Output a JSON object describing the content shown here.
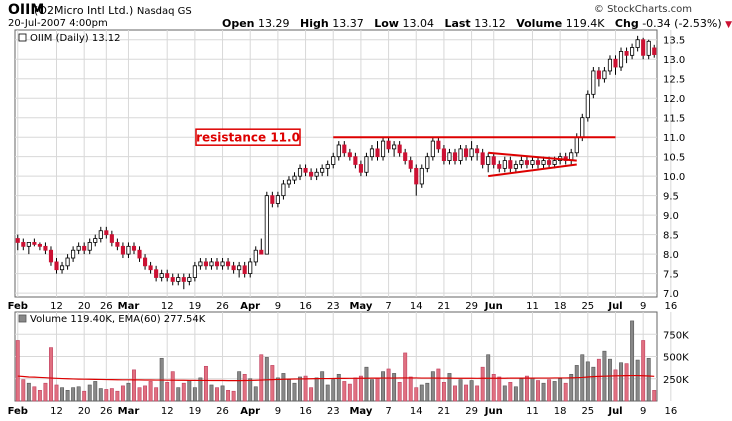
{
  "header": {
    "symbol": "OIIM",
    "company": "(O2Micro Intl Ltd.)",
    "exchange": "Nasdaq GS",
    "datetime": "20-Jul-2007 4:00pm",
    "watermark": "© StockCharts.com",
    "quote": {
      "open_label": "Open",
      "open": "13.29",
      "high_label": "High",
      "high": "13.37",
      "low_label": "Low",
      "low": "13.04",
      "last_label": "Last",
      "last": "13.12",
      "volume_label": "Volume",
      "volume": "119.4K",
      "chg_label": "Chg",
      "chg": "-0.34 (-2.53%)"
    }
  },
  "colors": {
    "up": "#ffffff",
    "down": "#cc1133",
    "vol_up": "#888888",
    "vol_down": "#e07080",
    "ema": "#dd0000",
    "grid": "#d8d8d8",
    "annotation": "#dd0000"
  },
  "chart_data": [
    {
      "type": "candlestick",
      "legend": "OIIM (Daily) 13.12",
      "ylim": [
        6.9,
        13.75
      ],
      "y_ticks": [
        "7.0",
        "7.5",
        "8.0",
        "8.5",
        "9.0",
        "9.5",
        "10.0",
        "10.5",
        "11.0",
        "11.5",
        "12.0",
        "12.5",
        "13.0",
        "13.5"
      ],
      "x_ticks": [
        "Feb",
        "12",
        "20",
        "26",
        "Mar",
        "12",
        "19",
        "26",
        "Apr",
        "9",
        "16",
        "23",
        "May",
        "7",
        "14",
        "21",
        "29",
        "Jun",
        "11",
        "18",
        "25",
        "Jul",
        "9",
        "16"
      ],
      "x_tick_index": [
        0,
        7,
        12,
        16,
        20,
        27,
        32,
        37,
        42,
        47,
        52,
        57,
        62,
        67,
        72,
        77,
        82,
        86,
        93,
        98,
        103,
        108,
        113,
        118
      ],
      "annotation": {
        "label": "resistance 11.0",
        "value": 11.0
      },
      "triangle": {
        "upper": [
          [
            0,
            10.6
          ],
          [
            16,
            10.4
          ]
        ],
        "lower": [
          [
            0,
            10.0
          ],
          [
            16,
            10.3
          ]
        ]
      },
      "candles": [
        [
          8.4,
          8.5,
          8.1,
          8.3
        ],
        [
          8.3,
          8.4,
          8.1,
          8.2
        ],
        [
          8.2,
          8.3,
          8.0,
          8.3
        ],
        [
          8.3,
          8.4,
          8.2,
          8.25
        ],
        [
          8.25,
          8.3,
          8.1,
          8.2
        ],
        [
          8.2,
          8.3,
          8.0,
          8.1
        ],
        [
          8.1,
          8.2,
          7.7,
          7.8
        ],
        [
          7.8,
          7.9,
          7.5,
          7.6
        ],
        [
          7.6,
          7.8,
          7.5,
          7.7
        ],
        [
          7.7,
          8.0,
          7.6,
          7.9
        ],
        [
          7.9,
          8.2,
          7.8,
          8.1
        ],
        [
          8.1,
          8.3,
          8.0,
          8.2
        ],
        [
          8.2,
          8.3,
          8.0,
          8.1
        ],
        [
          8.1,
          8.4,
          8.0,
          8.3
        ],
        [
          8.3,
          8.5,
          8.2,
          8.4
        ],
        [
          8.4,
          8.7,
          8.3,
          8.6
        ],
        [
          8.6,
          8.7,
          8.4,
          8.5
        ],
        [
          8.5,
          8.6,
          8.2,
          8.3
        ],
        [
          8.3,
          8.4,
          8.1,
          8.2
        ],
        [
          8.2,
          8.3,
          7.9,
          8.0
        ],
        [
          8.0,
          8.3,
          7.9,
          8.2
        ],
        [
          8.2,
          8.3,
          8.0,
          8.1
        ],
        [
          8.1,
          8.2,
          7.8,
          7.9
        ],
        [
          7.9,
          8.0,
          7.6,
          7.7
        ],
        [
          7.7,
          7.8,
          7.5,
          7.6
        ],
        [
          7.6,
          7.7,
          7.3,
          7.4
        ],
        [
          7.4,
          7.6,
          7.3,
          7.5
        ],
        [
          7.5,
          7.6,
          7.3,
          7.4
        ],
        [
          7.4,
          7.5,
          7.2,
          7.3
        ],
        [
          7.3,
          7.5,
          7.2,
          7.4
        ],
        [
          7.4,
          7.5,
          7.1,
          7.3
        ],
        [
          7.3,
          7.5,
          7.2,
          7.4
        ],
        [
          7.4,
          7.8,
          7.3,
          7.7
        ],
        [
          7.7,
          7.9,
          7.6,
          7.8
        ],
        [
          7.8,
          7.9,
          7.6,
          7.7
        ],
        [
          7.7,
          7.9,
          7.6,
          7.8
        ],
        [
          7.8,
          7.9,
          7.6,
          7.7
        ],
        [
          7.7,
          7.9,
          7.6,
          7.8
        ],
        [
          7.8,
          7.9,
          7.6,
          7.7
        ],
        [
          7.7,
          7.8,
          7.5,
          7.6
        ],
        [
          7.6,
          7.8,
          7.4,
          7.7
        ],
        [
          7.7,
          7.8,
          7.4,
          7.5
        ],
        [
          7.5,
          7.9,
          7.4,
          7.8
        ],
        [
          7.8,
          8.2,
          7.7,
          8.1
        ],
        [
          8.1,
          8.4,
          8.0,
          8.0
        ],
        [
          8.0,
          9.6,
          8.0,
          9.5
        ],
        [
          9.5,
          9.6,
          9.2,
          9.3
        ],
        [
          9.3,
          9.6,
          9.2,
          9.5
        ],
        [
          9.5,
          9.9,
          9.4,
          9.8
        ],
        [
          9.8,
          10.0,
          9.7,
          9.9
        ],
        [
          9.9,
          10.1,
          9.8,
          10.0
        ],
        [
          10.0,
          10.3,
          9.9,
          10.2
        ],
        [
          10.2,
          10.3,
          10.0,
          10.1
        ],
        [
          10.1,
          10.2,
          9.9,
          10.0
        ],
        [
          10.0,
          10.2,
          9.9,
          10.1
        ],
        [
          10.1,
          10.3,
          10.0,
          10.2
        ],
        [
          10.2,
          10.4,
          10.0,
          10.3
        ],
        [
          10.3,
          10.6,
          10.2,
          10.5
        ],
        [
          10.5,
          10.9,
          10.4,
          10.8
        ],
        [
          10.8,
          10.9,
          10.5,
          10.6
        ],
        [
          10.6,
          10.7,
          10.4,
          10.5
        ],
        [
          10.5,
          10.6,
          10.2,
          10.3
        ],
        [
          10.3,
          10.4,
          10.0,
          10.1
        ],
        [
          10.1,
          10.6,
          10.0,
          10.5
        ],
        [
          10.5,
          10.8,
          10.4,
          10.7
        ],
        [
          10.7,
          10.9,
          10.4,
          10.5
        ],
        [
          10.5,
          11.0,
          10.4,
          10.9
        ],
        [
          10.9,
          11.0,
          10.6,
          10.7
        ],
        [
          10.7,
          10.9,
          10.5,
          10.8
        ],
        [
          10.8,
          10.9,
          10.5,
          10.6
        ],
        [
          10.6,
          10.7,
          10.3,
          10.4
        ],
        [
          10.4,
          10.5,
          10.1,
          10.2
        ],
        [
          10.2,
          10.3,
          9.5,
          9.8
        ],
        [
          9.8,
          10.3,
          9.7,
          10.2
        ],
        [
          10.2,
          10.6,
          10.1,
          10.5
        ],
        [
          10.5,
          11.0,
          10.4,
          10.9
        ],
        [
          10.9,
          11.0,
          10.6,
          10.7
        ],
        [
          10.7,
          10.8,
          10.3,
          10.4
        ],
        [
          10.4,
          10.7,
          10.3,
          10.6
        ],
        [
          10.6,
          10.7,
          10.3,
          10.4
        ],
        [
          10.4,
          10.8,
          10.3,
          10.7
        ],
        [
          10.7,
          10.8,
          10.4,
          10.5
        ],
        [
          10.5,
          10.9,
          10.4,
          10.7
        ],
        [
          10.7,
          10.8,
          10.4,
          10.6
        ],
        [
          10.6,
          10.7,
          10.2,
          10.3
        ],
        [
          10.3,
          10.6,
          10.1,
          10.5
        ],
        [
          10.5,
          10.6,
          10.2,
          10.3
        ],
        [
          10.3,
          10.4,
          10.1,
          10.2
        ],
        [
          10.2,
          10.5,
          10.1,
          10.4
        ],
        [
          10.4,
          10.5,
          10.1,
          10.2
        ],
        [
          10.2,
          10.4,
          10.1,
          10.3
        ],
        [
          10.3,
          10.5,
          10.2,
          10.4
        ],
        [
          10.4,
          10.5,
          10.2,
          10.3
        ],
        [
          10.3,
          10.5,
          10.2,
          10.4
        ],
        [
          10.4,
          10.5,
          10.2,
          10.3
        ],
        [
          10.3,
          10.5,
          10.2,
          10.4
        ],
        [
          10.4,
          10.5,
          10.2,
          10.3
        ],
        [
          10.3,
          10.5,
          10.2,
          10.4
        ],
        [
          10.4,
          10.6,
          10.3,
          10.5
        ],
        [
          10.5,
          10.6,
          10.3,
          10.4
        ],
        [
          10.4,
          10.7,
          10.3,
          10.6
        ],
        [
          10.6,
          11.1,
          10.5,
          11.0
        ],
        [
          11.0,
          11.6,
          10.9,
          11.5
        ],
        [
          11.5,
          12.2,
          11.4,
          12.1
        ],
        [
          12.1,
          12.8,
          12.0,
          12.7
        ],
        [
          12.7,
          12.8,
          12.3,
          12.5
        ],
        [
          12.5,
          12.8,
          12.4,
          12.7
        ],
        [
          12.7,
          13.1,
          12.6,
          13.0
        ],
        [
          13.0,
          13.1,
          12.6,
          12.8
        ],
        [
          12.8,
          13.3,
          12.7,
          13.2
        ],
        [
          13.2,
          13.3,
          12.9,
          13.1
        ],
        [
          13.1,
          13.4,
          13.0,
          13.3
        ],
        [
          13.3,
          13.6,
          13.2,
          13.5
        ],
        [
          13.5,
          13.55,
          13.0,
          13.1
        ],
        [
          13.1,
          13.5,
          13.0,
          13.46
        ],
        [
          13.29,
          13.37,
          13.04,
          13.12
        ]
      ]
    },
    {
      "type": "bar",
      "legend": "Volume 119.40K, EMA(60) 277.54K",
      "ylim": [
        0,
        1000000
      ],
      "y_ticks": [
        "250K",
        "500K",
        "750K"
      ],
      "y_tick_values": [
        250000,
        500000,
        750000
      ],
      "ema": [
        280000,
        275000,
        270000,
        268000,
        265000,
        262000,
        258000,
        255000,
        252000,
        250000,
        248000,
        246000,
        245000,
        244000,
        243000,
        242000,
        241000,
        240000,
        239000,
        238000,
        238000,
        237000,
        237000,
        236000,
        236000,
        235000,
        235000,
        234000,
        234000,
        233000,
        233000,
        232000,
        232000,
        231000,
        231000,
        230000,
        230000,
        230000,
        229000,
        229000,
        229000,
        230000,
        231000,
        233000,
        235000,
        238000,
        240000,
        242000,
        244000,
        246000,
        247000,
        248000,
        249000,
        250000,
        251000,
        252000,
        252000,
        253000,
        254000,
        254000,
        255000,
        255000,
        256000,
        256000,
        257000,
        257000,
        258000,
        258000,
        258000,
        259000,
        259000,
        259000,
        259000,
        258000,
        258000,
        258000,
        257000,
        257000,
        257000,
        256000,
        256000,
        256000,
        256000,
        255000,
        256000,
        256000,
        256000,
        256000,
        256000,
        257000,
        257000,
        257000,
        257000,
        257000,
        258000,
        258000,
        258000,
        259000,
        259000,
        259000,
        260000,
        262000,
        265000,
        270000,
        274000,
        277000,
        279000,
        281000,
        283000,
        284000,
        285000,
        286000,
        286000,
        284000,
        281000,
        277540
      ],
      "volumes": [
        680000,
        240000,
        200000,
        160000,
        120000,
        200000,
        600000,
        180000,
        150000,
        120000,
        150000,
        160000,
        110000,
        180000,
        220000,
        140000,
        130000,
        140000,
        110000,
        170000,
        200000,
        350000,
        150000,
        170000,
        220000,
        150000,
        480000,
        210000,
        330000,
        150000,
        200000,
        230000,
        150000,
        260000,
        390000,
        180000,
        150000,
        170000,
        120000,
        110000,
        330000,
        300000,
        250000,
        160000,
        520000,
        490000,
        400000,
        260000,
        310000,
        240000,
        200000,
        270000,
        280000,
        150000,
        260000,
        330000,
        180000,
        240000,
        300000,
        220000,
        190000,
        260000,
        280000,
        380000,
        240000,
        260000,
        330000,
        360000,
        310000,
        210000,
        540000,
        270000,
        150000,
        180000,
        200000,
        330000,
        360000,
        210000,
        310000,
        170000,
        240000,
        180000,
        230000,
        170000,
        380000,
        520000,
        300000,
        270000,
        170000,
        210000,
        160000,
        250000,
        280000,
        260000,
        230000,
        200000,
        240000,
        220000,
        250000,
        200000,
        300000,
        400000,
        520000,
        440000,
        380000,
        470000,
        560000,
        470000,
        350000,
        430000,
        420000,
        900000,
        460000,
        680000,
        480000,
        119400
      ]
    }
  ]
}
